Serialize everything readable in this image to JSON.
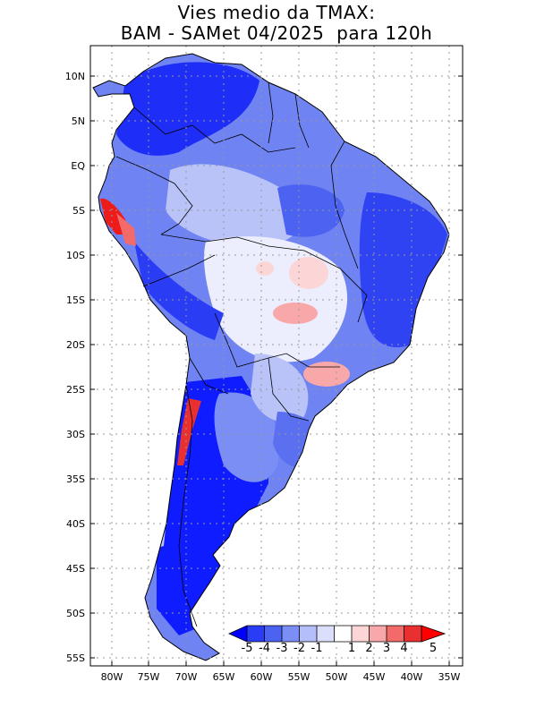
{
  "title": {
    "line1": "Vies medio da TMAX:",
    "line2": "BAM - SAMet 04/2025  para 120h"
  },
  "map": {
    "lat_ticks": [
      "10N",
      "5N",
      "EQ",
      "5S",
      "10S",
      "15S",
      "20S",
      "25S",
      "30S",
      "35S",
      "40S",
      "45S",
      "50S",
      "55S"
    ],
    "lon_ticks": [
      "80W",
      "75W",
      "70W",
      "65W",
      "60W",
      "55W",
      "50W",
      "45W",
      "40W",
      "35W"
    ],
    "lat_range": [
      -56,
      13
    ],
    "lon_range": [
      -83,
      -34
    ]
  },
  "colorbar": {
    "labels": [
      "-5",
      "-4",
      "-3",
      "-2",
      "-1",
      "1",
      "2",
      "3",
      "4",
      "5"
    ],
    "colors": [
      "#0000ff",
      "#2a3cf5",
      "#4b63f0",
      "#7a8ef5",
      "#b4bef8",
      "#dcdffb",
      "#ffffff",
      "#fcd6d6",
      "#f8a8a8",
      "#f26a6a",
      "#e83030",
      "#ff0000"
    ]
  }
}
